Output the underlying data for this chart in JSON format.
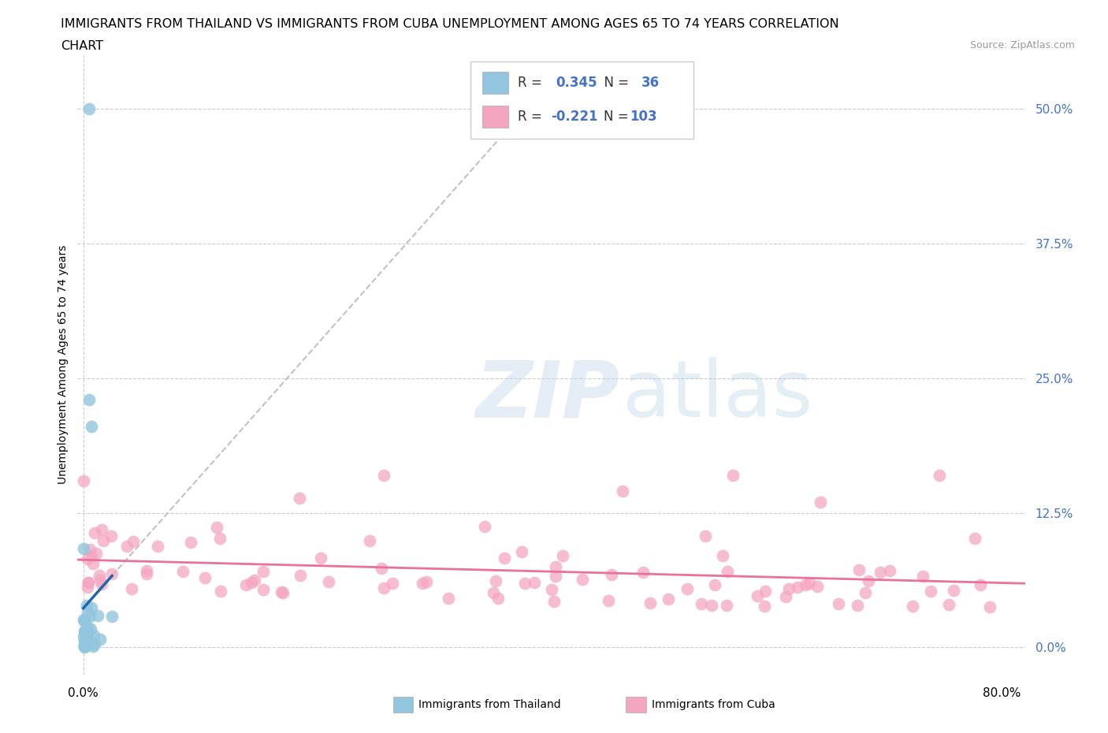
{
  "title_line1": "IMMIGRANTS FROM THAILAND VS IMMIGRANTS FROM CUBA UNEMPLOYMENT AMONG AGES 65 TO 74 YEARS CORRELATION",
  "title_line2": "CHART",
  "source": "Source: ZipAtlas.com",
  "ylabel": "Unemployment Among Ages 65 to 74 years",
  "ytick_labels": [
    "0.0%",
    "12.5%",
    "25.0%",
    "37.5%",
    "50.0%"
  ],
  "ytick_values": [
    0.0,
    0.125,
    0.25,
    0.375,
    0.5
  ],
  "xlim": [
    -0.005,
    0.82
  ],
  "ylim": [
    -0.025,
    0.55
  ],
  "thailand_color": "#92c5de",
  "cuba_color": "#f4a6c0",
  "thailand_line_color": "#2166ac",
  "cuba_line_color": "#e8729a",
  "dashed_color": "#bbbbbb",
  "R_thailand": 0.345,
  "N_thailand": 36,
  "R_cuba": -0.221,
  "N_cuba": 103,
  "background_color": "#ffffff",
  "grid_color": "#cccccc",
  "tick_color_right": "#4472c4",
  "title_fontsize": 11.5,
  "source_fontsize": 9
}
